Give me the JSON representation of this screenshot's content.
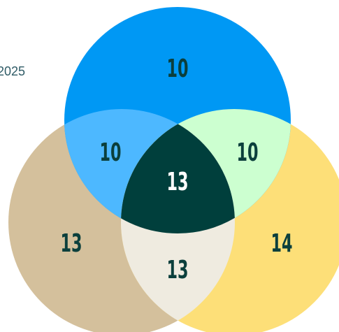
{
  "side_label": "2025",
  "regions": [
    {
      "name": "top",
      "value": 10
    },
    {
      "name": "top-left",
      "value": 10
    },
    {
      "name": "top-right",
      "value": 10
    },
    {
      "name": "center",
      "value": 13
    },
    {
      "name": "left",
      "value": 13
    },
    {
      "name": "right",
      "value": 14
    },
    {
      "name": "bottom",
      "value": 13
    }
  ]
}
